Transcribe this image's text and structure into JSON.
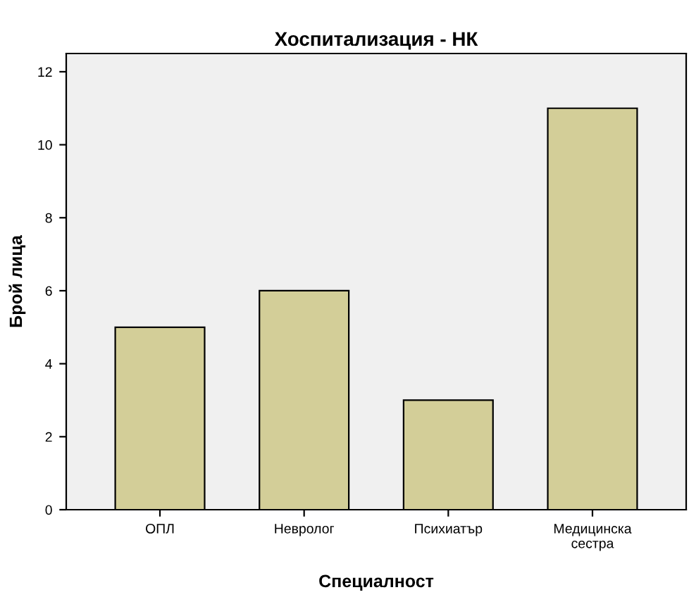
{
  "chart_data": {
    "type": "bar",
    "title": "Хоспитализация - НК",
    "xlabel": "Специалност",
    "ylabel": "Брой лица",
    "categories": [
      "ОПЛ",
      "Невролог",
      "Психиатър",
      "Медицинска\nсестра"
    ],
    "values": [
      5,
      6,
      3,
      11
    ],
    "color": "#d3ce98",
    "ylim": [
      0,
      12.5
    ],
    "yticks": [
      0,
      2,
      4,
      6,
      8,
      10,
      12
    ],
    "grid": false,
    "legend": false
  }
}
